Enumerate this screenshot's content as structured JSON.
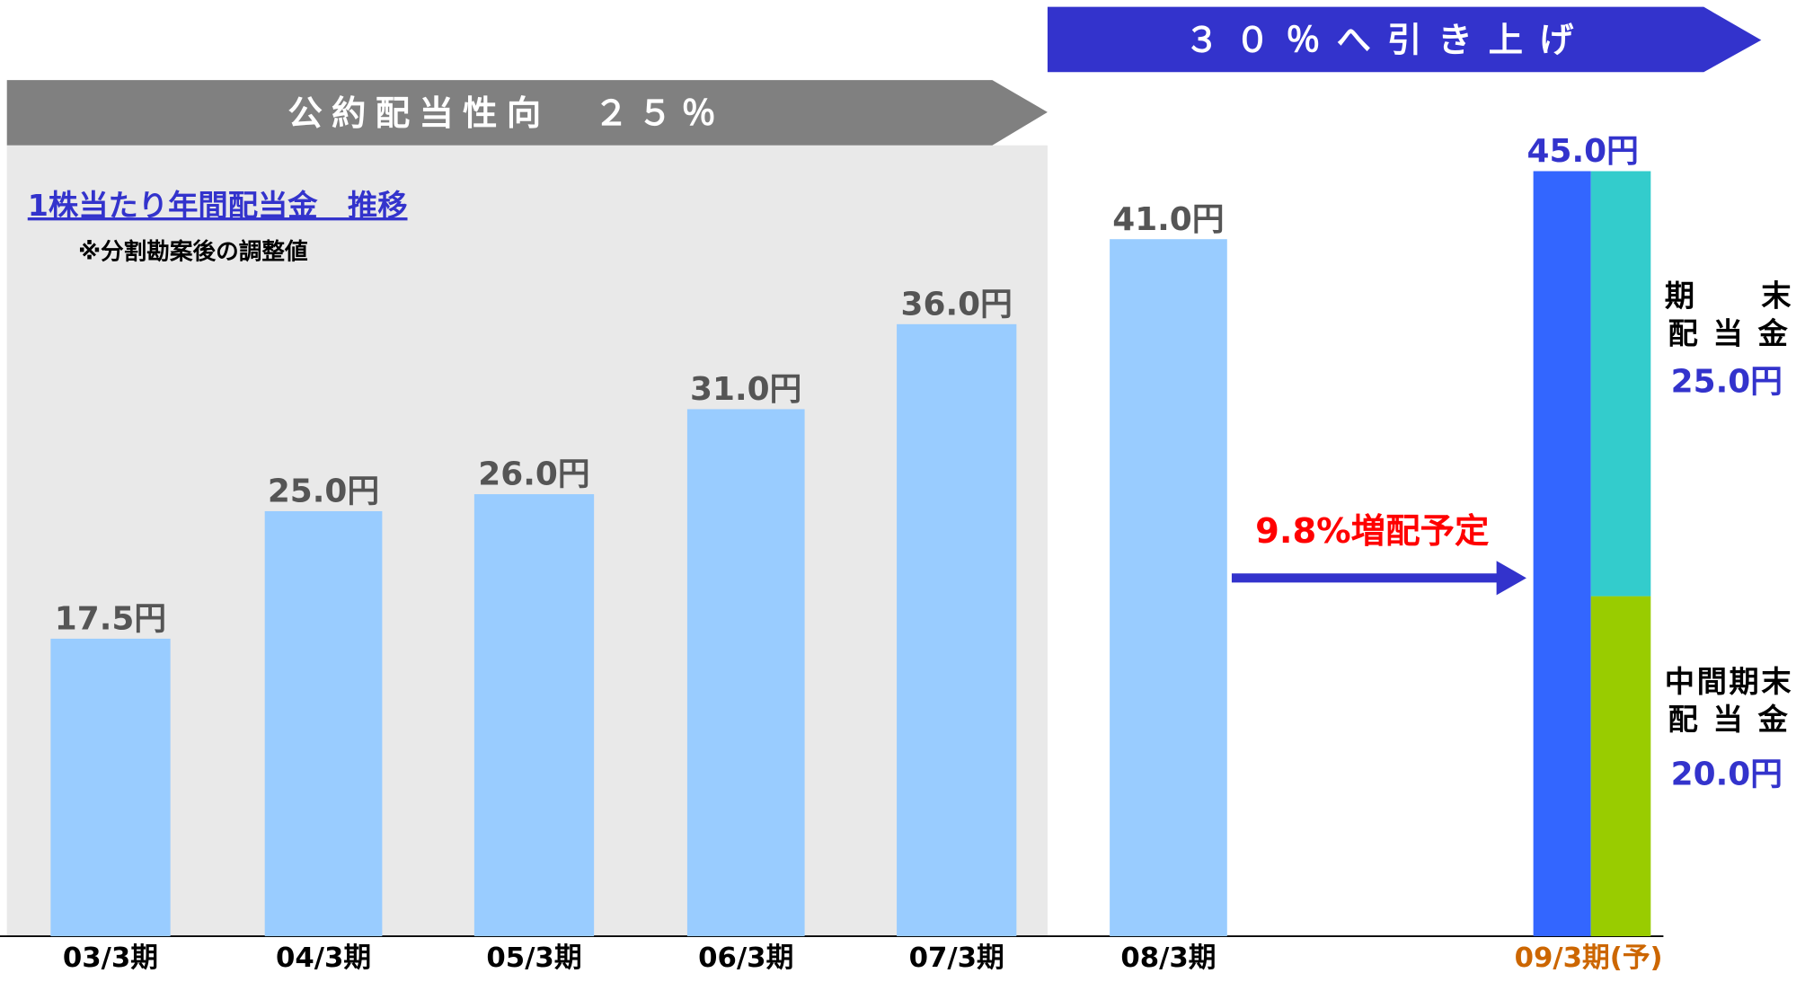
{
  "chart_data": {
    "type": "bar",
    "title": "1株当たり年間配当金　推移",
    "subtitle": "※分割勘案後の調整値",
    "banners": [
      "公約配当性向　２５％",
      "３０％へ引き上げ"
    ],
    "annotation": "9.8%増配予定",
    "categories": [
      "03/3期",
      "04/3期",
      "05/3期",
      "06/3期",
      "07/3期",
      "08/3期",
      "09/3期(予)"
    ],
    "values": [
      17.5,
      25,
      26,
      31,
      36,
      41,
      45
    ],
    "value_labels": [
      "17.5円",
      "25.0円",
      "26.0円",
      "31.0円",
      "36.0円",
      "41.0円",
      "45.0円"
    ],
    "color": "#99ccff",
    "forecast_color": "#3366ff",
    "breakdown": [
      {
        "name_lines": [
          "中間期末",
          "配 当 金"
        ],
        "value": 20,
        "label": "20.0円",
        "color": "#99cc00"
      },
      {
        "name_lines": [
          "期　　末",
          "配 当 金"
        ],
        "value": 25,
        "label": "25.0円",
        "color": "#33cccc"
      }
    ],
    "ylim": [
      0,
      55
    ]
  }
}
